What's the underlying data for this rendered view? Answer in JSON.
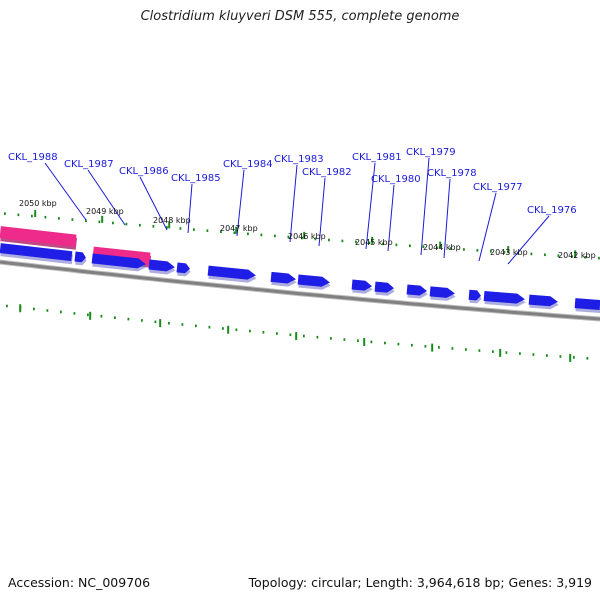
{
  "title": "Clostridium kluyveri DSM 555, complete genome",
  "footer": {
    "accession": "Accession: NC_009706",
    "topology": "Topology: circular; Length: 3,964,618 bp; Genes: 3,919"
  },
  "colors": {
    "forward_gene": "#1e1ee6",
    "pink_feature": "#ee2a8a",
    "backbone": "#808080",
    "tick": "#1a8a1a",
    "label": "#1a1adb",
    "leader": "#1a1adb"
  },
  "kbp_labels": [
    "2050 kbp",
    "2049 kbp",
    "2048 kbp",
    "2047 kbp",
    "2046 kbp",
    "2045 kbp",
    "2044 kbp",
    "2043 kbp",
    "2042 kbp"
  ],
  "gene_labels": [
    "CKL_1988",
    "CKL_1987",
    "CKL_1986",
    "CKL_1985",
    "CKL_1984",
    "CKL_1983",
    "CKL_1982",
    "CKL_1981",
    "CKL_1980",
    "CKL_1979",
    "CKL_1978",
    "CKL_1977",
    "CKL_1976"
  ]
}
